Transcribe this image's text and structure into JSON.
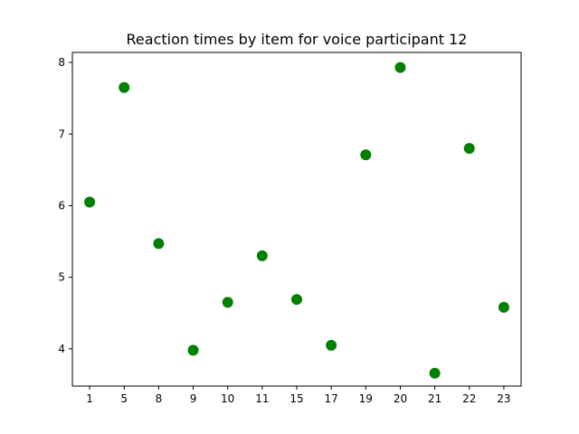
{
  "chart_data": {
    "type": "scatter",
    "title": "Reaction times by item for voice participant 12",
    "xlabel": "",
    "ylabel": "",
    "categories": [
      "1",
      "5",
      "8",
      "9",
      "10",
      "11",
      "15",
      "17",
      "19",
      "20",
      "21",
      "22",
      "23"
    ],
    "values": [
      6.05,
      7.65,
      5.47,
      3.98,
      4.65,
      5.3,
      4.69,
      4.05,
      6.71,
      7.93,
      3.66,
      6.8,
      4.58
    ],
    "ylim": [
      3.48,
      8.14
    ],
    "yticks": [
      4,
      5,
      6,
      7,
      8
    ],
    "grid": false,
    "marker_color": "#008000"
  }
}
